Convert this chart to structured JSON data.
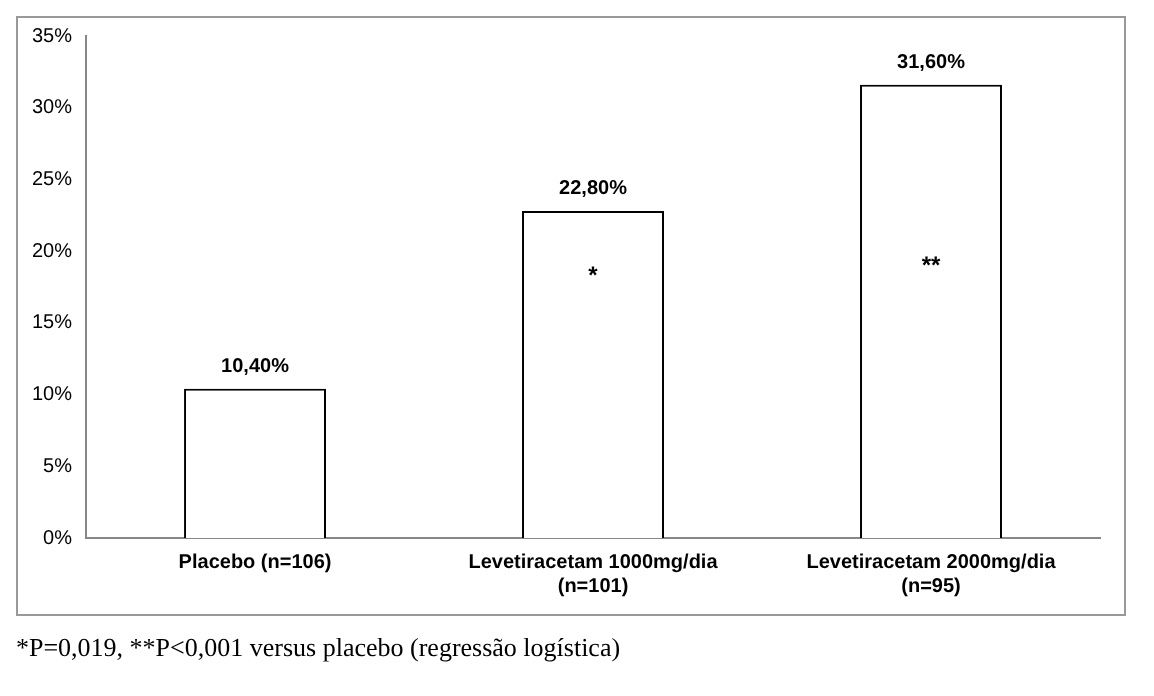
{
  "chart_data": {
    "type": "bar",
    "categories": [
      "Placebo (n=106)",
      "Levetiracetam 1000mg/dia (n=101)",
      "Levetiracetam 2000mg/dia (n=95)"
    ],
    "values": [
      10.4,
      22.8,
      31.6
    ],
    "color": "#ffffff",
    "value_labels": [
      "10,40%",
      "22,80%",
      "31,60%"
    ],
    "ylim": [
      0,
      35
    ],
    "yticks": [
      {
        "value": 0,
        "label": "0%"
      },
      {
        "value": 5,
        "label": "5%"
      },
      {
        "value": 10,
        "label": "10%"
      },
      {
        "value": 15,
        "label": "15%"
      },
      {
        "value": 20,
        "label": "20%"
      },
      {
        "value": 25,
        "label": "25%"
      },
      {
        "value": 30,
        "label": "30%"
      },
      {
        "value": 35,
        "label": "35%"
      }
    ],
    "grid": false,
    "legend": false,
    "annotations": [
      "*",
      "**",
      "*P=0,019, **P<0,001 versus placebo (regressão logística)"
    ]
  }
}
